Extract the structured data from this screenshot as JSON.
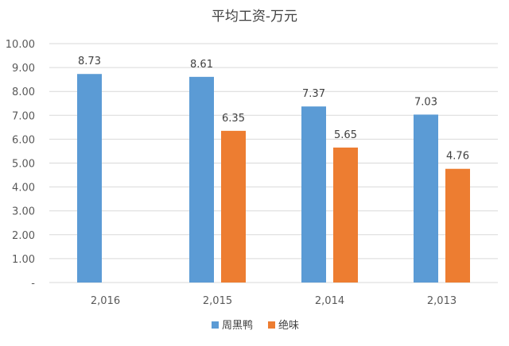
{
  "chart_data": {
    "type": "bar",
    "title": "平均工资-万元",
    "categories": [
      "2,016",
      "2,015",
      "2,014",
      "2,013"
    ],
    "series": [
      {
        "name": "周黑鸭",
        "color": "#5b9bd5",
        "values": [
          8.73,
          8.61,
          7.37,
          7.03
        ]
      },
      {
        "name": "绝味",
        "color": "#ed7d31",
        "values": [
          null,
          6.35,
          5.65,
          4.76
        ]
      }
    ],
    "data_labels": [
      [
        "8.73",
        "8.61",
        "7.37",
        "7.03"
      ],
      [
        "",
        "6.35",
        "5.65",
        "4.76"
      ]
    ],
    "y_ticks": [
      "-",
      "1.00",
      "2.00",
      "3.00",
      "4.00",
      "5.00",
      "6.00",
      "7.00",
      "8.00",
      "9.00",
      "10.00"
    ],
    "ylim": [
      0,
      10
    ],
    "grid": true,
    "legend_position": "bottom"
  }
}
